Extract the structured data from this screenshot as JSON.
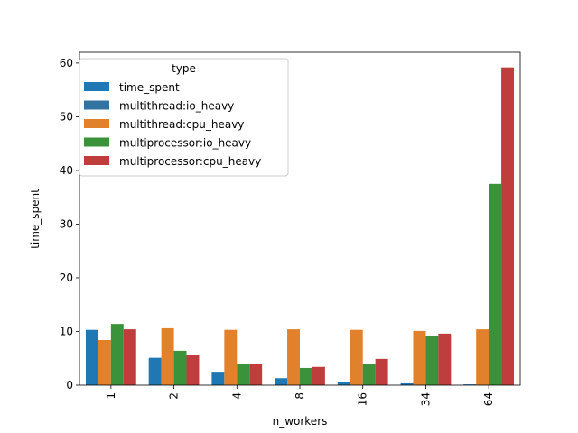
{
  "chart_data": {
    "type": "bar",
    "xlabel": "n_workers",
    "ylabel": "time_spent",
    "categories": [
      "1",
      "2",
      "4",
      "8",
      "16",
      "34",
      "64"
    ],
    "ylim": [
      0,
      62
    ],
    "yticks": [
      0,
      10,
      20,
      30,
      40,
      50,
      60
    ],
    "grid": false,
    "legend": {
      "title": "type",
      "placement": "top-left"
    },
    "series": [
      {
        "name": "time_spent",
        "color": "#1f77b4",
        "values": [
          10.3,
          5.1,
          2.5,
          1.3,
          0.6,
          0.35,
          0.15
        ]
      },
      {
        "name": "multithread:io_heavy",
        "color": "#3274a1",
        "values": [
          10.3,
          null,
          null,
          null,
          null,
          null,
          null
        ]
      },
      {
        "name": "multithread:cpu_heavy",
        "color": "#e1812c",
        "values": [
          8.4,
          10.6,
          10.3,
          10.4,
          10.3,
          10.1,
          10.4
        ]
      },
      {
        "name": "multiprocessor:io_heavy",
        "color": "#3a923a",
        "values": [
          11.4,
          6.4,
          3.9,
          3.2,
          4.0,
          9.1,
          37.5
        ]
      },
      {
        "name": "multiprocessor:cpu_heavy",
        "color": "#c03d3e",
        "values": [
          10.4,
          5.6,
          3.9,
          3.4,
          4.9,
          9.6,
          59.2
        ]
      }
    ]
  }
}
